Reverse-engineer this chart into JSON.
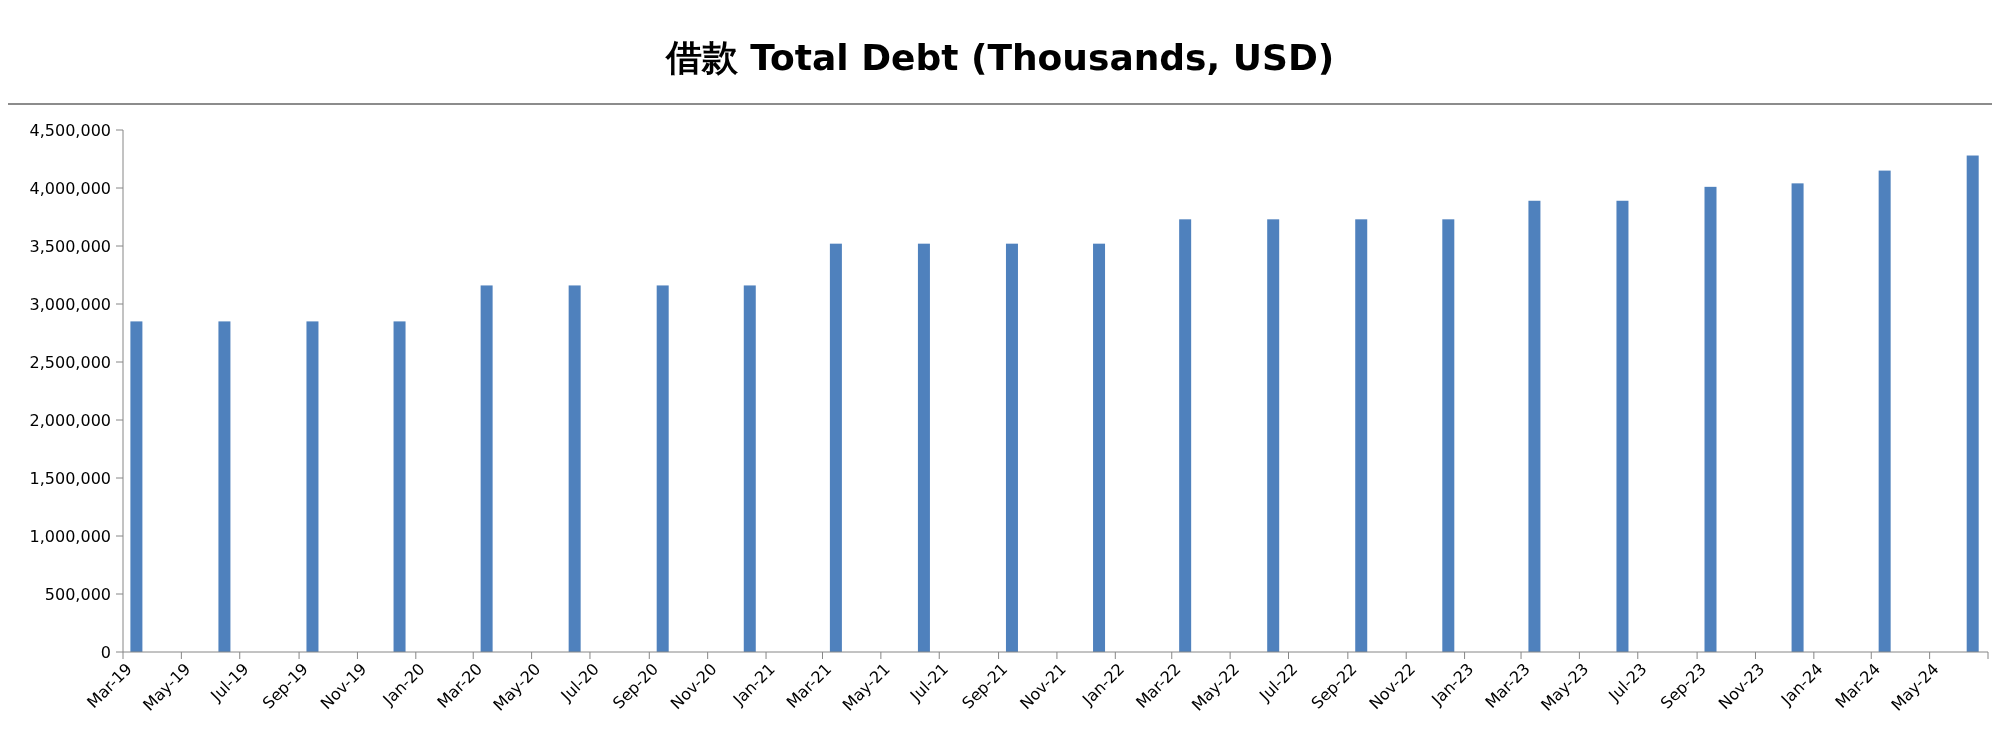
{
  "chart_data": {
    "type": "bar",
    "title": "借款 Total Debt (Thousands, USD)",
    "x": [
      "2019-03-15",
      "2019-06-15",
      "2019-09-15",
      "2019-12-15",
      "2020-03-15",
      "2020-06-15",
      "2020-09-15",
      "2020-12-15",
      "2021-03-15",
      "2021-06-15",
      "2021-09-15",
      "2021-12-15",
      "2022-03-15",
      "2022-06-15",
      "2022-09-15",
      "2022-12-15",
      "2023-03-15",
      "2023-06-15",
      "2023-09-15",
      "2023-12-15",
      "2024-03-15",
      "2024-06-15"
    ],
    "series": [
      {
        "color": "#4f81bd",
        "values": [
          2850000,
          2850000,
          2850000,
          2850000,
          3160000,
          3160000,
          3160000,
          3160000,
          3520000,
          3520000,
          3520000,
          3520000,
          3730000,
          3730000,
          3730000,
          3730000,
          3890000,
          3890000,
          4010000,
          4040000,
          4150000,
          4280000
        ]
      }
    ],
    "xlim": [
      "2019-03",
      "2024-07"
    ],
    "xticks": [
      {
        "value": "2019-03",
        "label": "Mar-19"
      },
      {
        "value": "2019-05",
        "label": "May-19"
      },
      {
        "value": "2019-07",
        "label": "Jul-19"
      },
      {
        "value": "2019-09",
        "label": "Sep-19"
      },
      {
        "value": "2019-11",
        "label": "Nov-19"
      },
      {
        "value": "2020-01",
        "label": "Jan-20"
      },
      {
        "value": "2020-03",
        "label": "Mar-20"
      },
      {
        "value": "2020-05",
        "label": "May-20"
      },
      {
        "value": "2020-07",
        "label": "Jul-20"
      },
      {
        "value": "2020-09",
        "label": "Sep-20"
      },
      {
        "value": "2020-11",
        "label": "Nov-20"
      },
      {
        "value": "2021-01",
        "label": "Jan-21"
      },
      {
        "value": "2021-03",
        "label": "Mar-21"
      },
      {
        "value": "2021-05",
        "label": "May-21"
      },
      {
        "value": "2021-07",
        "label": "Jul-21"
      },
      {
        "value": "2021-09",
        "label": "Sep-21"
      },
      {
        "value": "2021-11",
        "label": "Nov-21"
      },
      {
        "value": "2022-01",
        "label": "Jan-22"
      },
      {
        "value": "2022-03",
        "label": "Mar-22"
      },
      {
        "value": "2022-05",
        "label": "May-22"
      },
      {
        "value": "2022-07",
        "label": "Jul-22"
      },
      {
        "value": "2022-09",
        "label": "Sep-22"
      },
      {
        "value": "2022-11",
        "label": "Nov-22"
      },
      {
        "value": "2023-01",
        "label": "Jan-23"
      },
      {
        "value": "2023-03",
        "label": "Mar-23"
      },
      {
        "value": "2023-05",
        "label": "May-23"
      },
      {
        "value": "2023-07",
        "label": "Jul-23"
      },
      {
        "value": "2023-09",
        "label": "Sep-23"
      },
      {
        "value": "2023-11",
        "label": "Nov-23"
      },
      {
        "value": "2024-01",
        "label": "Jan-24"
      },
      {
        "value": "2024-03",
        "label": "Mar-24"
      },
      {
        "value": "2024-05",
        "label": "May-24"
      }
    ],
    "ylim": [
      0,
      4500000
    ],
    "yticks": [
      {
        "value": 0,
        "label": "0"
      },
      {
        "value": 500000,
        "label": "500,000"
      },
      {
        "value": 1000000,
        "label": "1,000,000"
      },
      {
        "value": 1500000,
        "label": "1,500,000"
      },
      {
        "value": 2000000,
        "label": "2,000,000"
      },
      {
        "value": 2500000,
        "label": "2,500,000"
      },
      {
        "value": 3000000,
        "label": "3,000,000"
      },
      {
        "value": 3500000,
        "label": "3,500,000"
      },
      {
        "value": 4000000,
        "label": "4,000,000"
      },
      {
        "value": 4500000,
        "label": "4,500,000"
      }
    ],
    "grid": false
  }
}
